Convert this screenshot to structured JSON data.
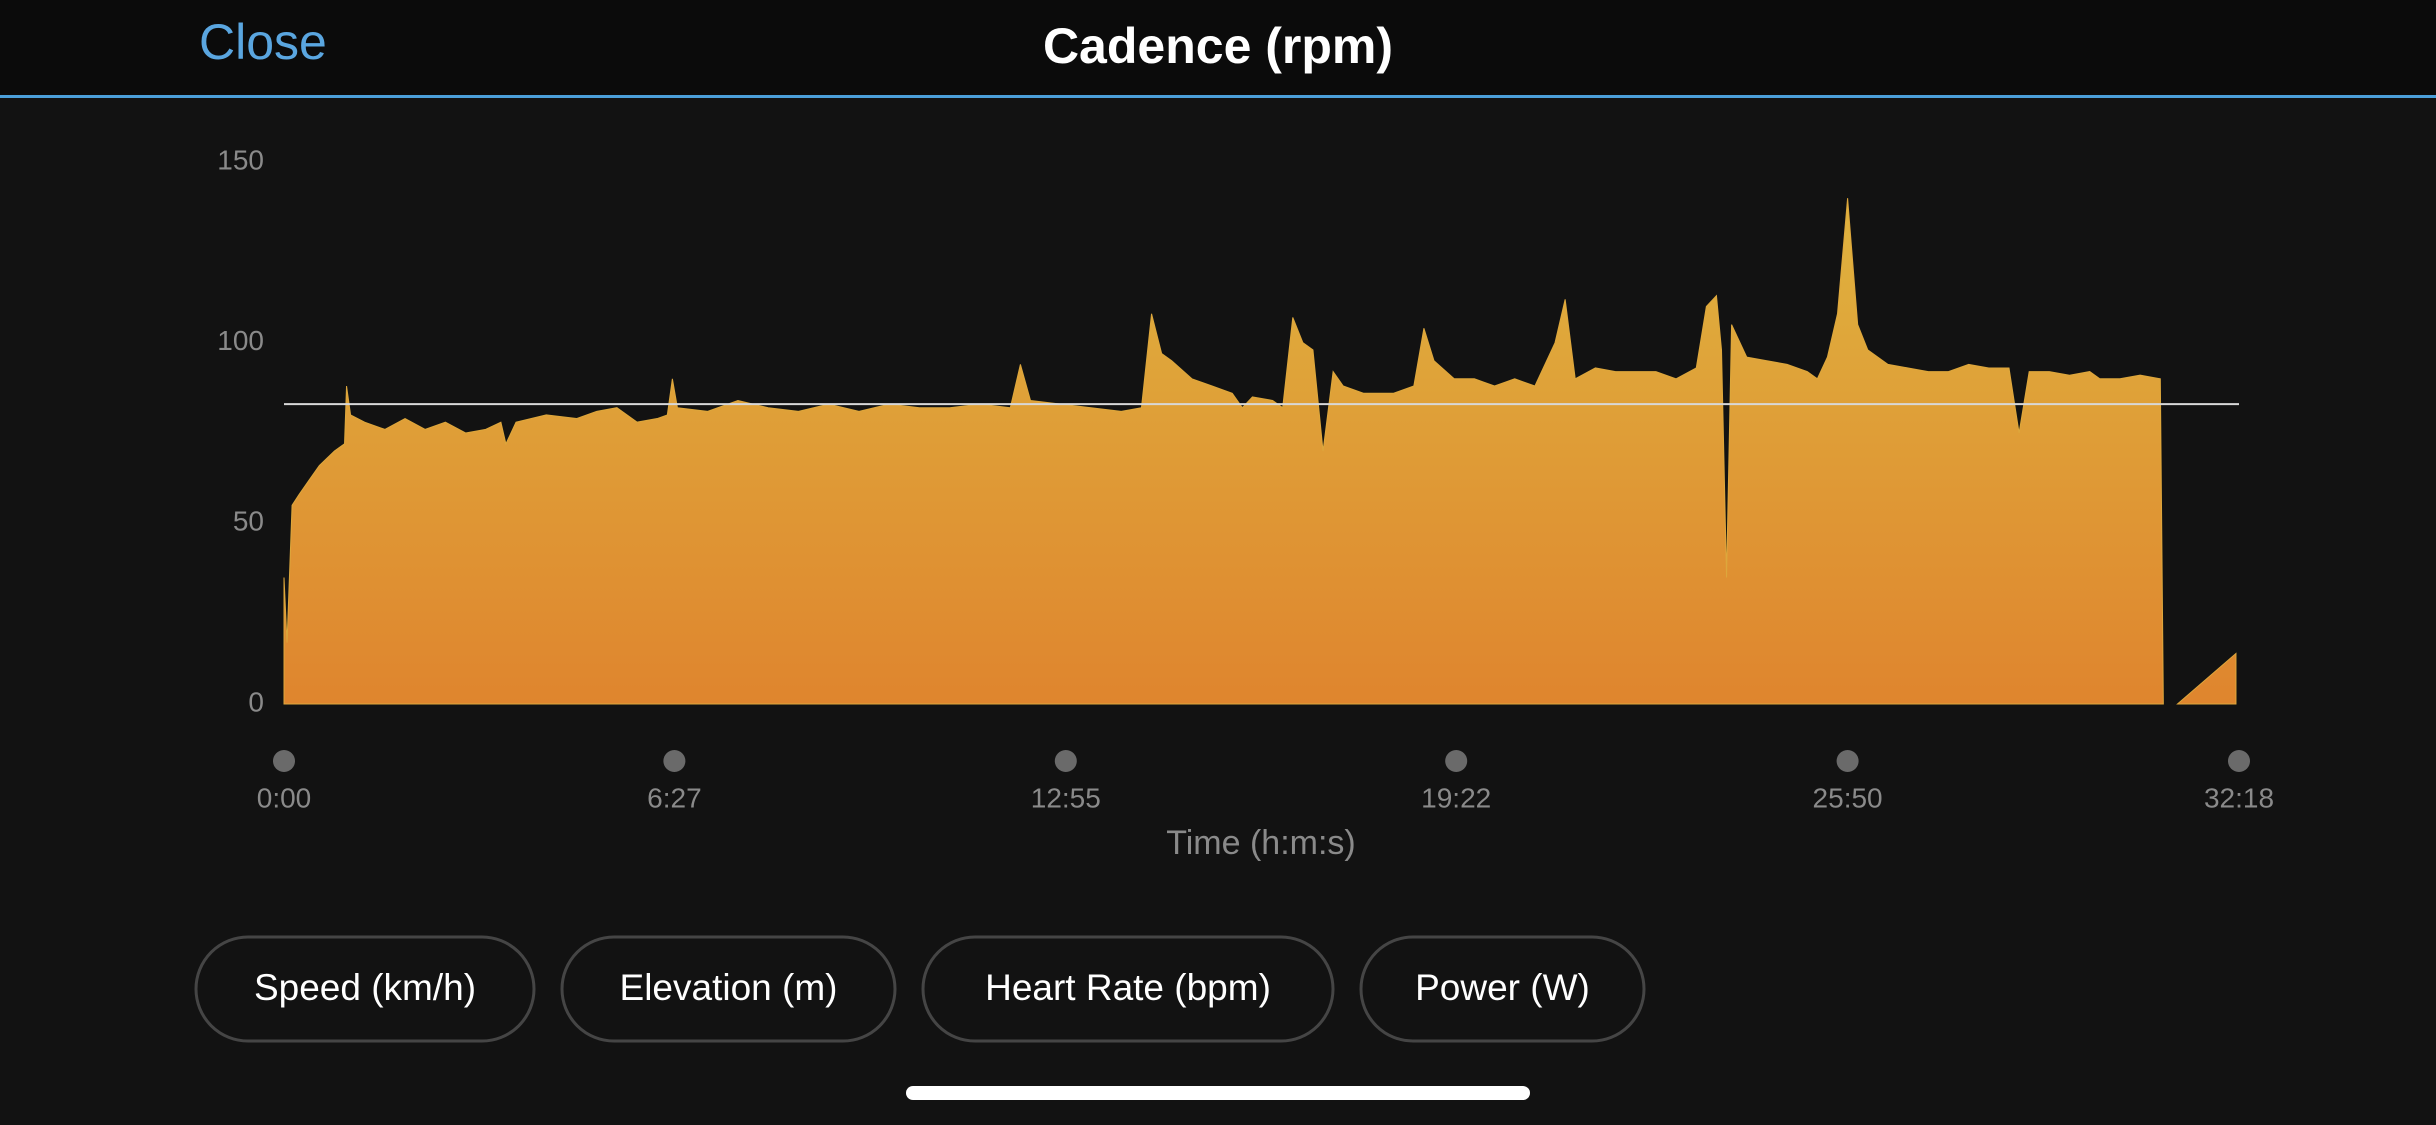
{
  "header": {
    "close": "Close",
    "title": "Cadence (rpm)"
  },
  "chart_data": {
    "type": "area",
    "xlabel": "Time (h:m:s)",
    "xlim": [
      0,
      1938
    ],
    "xticks": [
      {
        "value": 0,
        "label": "0:00"
      },
      {
        "value": 387,
        "label": "6:27"
      },
      {
        "value": 775,
        "label": "12:55"
      },
      {
        "value": 1162,
        "label": "19:22"
      },
      {
        "value": 1550,
        "label": "25:50"
      },
      {
        "value": 1938,
        "label": "32:18"
      }
    ],
    "ylim": [
      0,
      150
    ],
    "yticks": [
      0,
      50,
      100,
      150
    ],
    "reference_line": 83,
    "series": [
      {
        "name": "Cadence",
        "color": "#dda73c",
        "x": [
          0,
          3,
          8,
          15,
          25,
          35,
          50,
          60,
          62,
          66,
          80,
          100,
          120,
          140,
          160,
          180,
          200,
          215,
          220,
          230,
          260,
          290,
          310,
          330,
          350,
          370,
          380,
          385,
          390,
          420,
          450,
          480,
          510,
          540,
          570,
          600,
          630,
          660,
          690,
          720,
          730,
          740,
          770,
          800,
          830,
          850,
          860,
          870,
          880,
          900,
          920,
          940,
          950,
          960,
          980,
          990,
          1000,
          1010,
          1020,
          1030,
          1040,
          1050,
          1070,
          1100,
          1120,
          1130,
          1140,
          1160,
          1180,
          1200,
          1220,
          1240,
          1260,
          1270,
          1280,
          1300,
          1320,
          1340,
          1360,
          1380,
          1400,
          1410,
          1420,
          1425,
          1430,
          1435,
          1450,
          1470,
          1490,
          1510,
          1520,
          1530,
          1540,
          1550,
          1560,
          1570,
          1590,
          1610,
          1630,
          1650,
          1670,
          1690,
          1710,
          1720,
          1730,
          1750,
          1770,
          1790,
          1800,
          1820,
          1840,
          1860,
          1863,
          1870,
          1877,
          1935
        ],
        "values": [
          35,
          17,
          55,
          58,
          62,
          66,
          70,
          72,
          88,
          80,
          78,
          76,
          79,
          76,
          78,
          75,
          76,
          78,
          72,
          78,
          80,
          79,
          81,
          82,
          78,
          79,
          80,
          90,
          82,
          81,
          84,
          82,
          81,
          83,
          81,
          83,
          82,
          82,
          83,
          82,
          94,
          84,
          83,
          82,
          81,
          82,
          108,
          97,
          95,
          90,
          88,
          86,
          82,
          85,
          84,
          82,
          107,
          100,
          98,
          70,
          92,
          88,
          86,
          86,
          88,
          104,
          95,
          90,
          90,
          88,
          90,
          88,
          100,
          112,
          90,
          93,
          92,
          92,
          92,
          90,
          93,
          110,
          113,
          98,
          35,
          105,
          96,
          95,
          94,
          92,
          90,
          96,
          108,
          140,
          105,
          98,
          94,
          93,
          92,
          92,
          94,
          93,
          93,
          75,
          92,
          92,
          91,
          92,
          90,
          90,
          91,
          90,
          0,
          null,
          0,
          14
        ]
      }
    ]
  },
  "buttons": [
    "Speed (km/h)",
    "Elevation (m)",
    "Heart Rate (bpm)",
    "Power (W)"
  ]
}
